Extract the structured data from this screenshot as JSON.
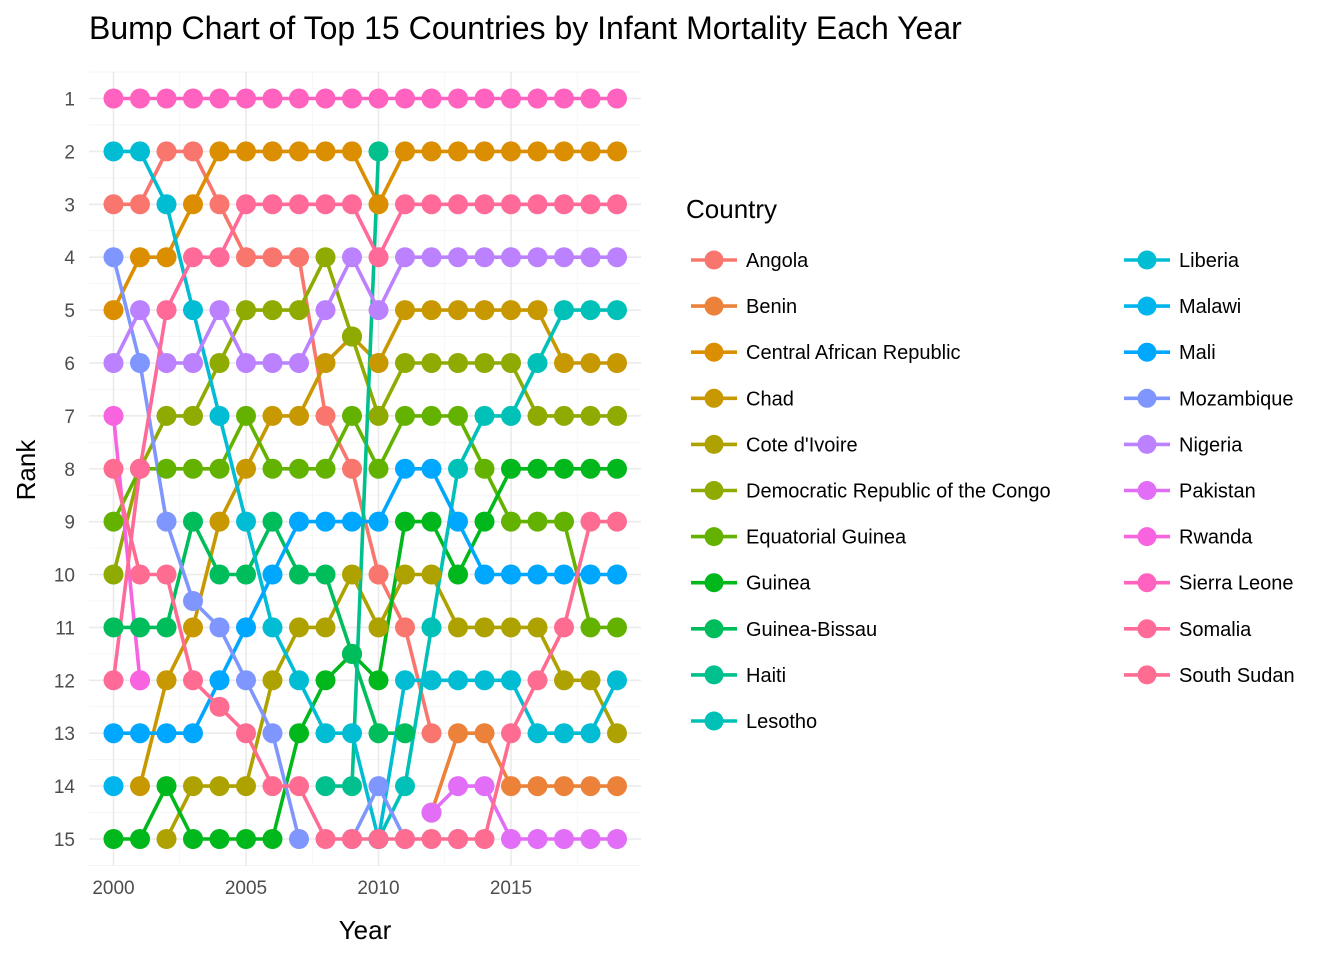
{
  "chart_data": {
    "type": "line",
    "title": "Bump Chart of Top 15 Countries by Infant Mortality Each Year",
    "xlabel": "Year",
    "ylabel": "Rank",
    "xlim": [
      1999.7,
      2019.3
    ],
    "ylim": [
      0.4,
      15.6
    ],
    "y_reversed": true,
    "x_ticks": [
      2000,
      2005,
      2010,
      2015
    ],
    "y_ticks": [
      1,
      2,
      3,
      4,
      5,
      6,
      7,
      8,
      9,
      10,
      11,
      12,
      13,
      14,
      15
    ],
    "grid": true,
    "legend_title": "Country",
    "legend_position": "right",
    "years": [
      2000,
      2001,
      2002,
      2003,
      2004,
      2005,
      2006,
      2007,
      2008,
      2009,
      2010,
      2011,
      2012,
      2013,
      2014,
      2015,
      2016,
      2017,
      2018,
      2019
    ],
    "series": [
      {
        "name": "Angola",
        "color": "#F8766D",
        "ranks": [
          3,
          3,
          2,
          2,
          3,
          4,
          4,
          4,
          7,
          8,
          10,
          11,
          13,
          null,
          null,
          null,
          null,
          null,
          null,
          null
        ]
      },
      {
        "name": "Benin",
        "color": "#EC8239",
        "ranks": [
          null,
          null,
          null,
          null,
          null,
          null,
          null,
          null,
          null,
          null,
          null,
          null,
          14.5,
          13,
          13,
          14,
          14,
          14,
          14,
          14
        ]
      },
      {
        "name": "Central African Republic",
        "color": "#DB8E00",
        "ranks": [
          5,
          4,
          4,
          3,
          2,
          2,
          2,
          2,
          2,
          2,
          3,
          2,
          2,
          2,
          2,
          2,
          2,
          2,
          2,
          2
        ]
      },
      {
        "name": "Chad",
        "color": "#C79800",
        "ranks": [
          null,
          14,
          12,
          11,
          9,
          8,
          7,
          7,
          6,
          5.5,
          6,
          5,
          5,
          5,
          5,
          5,
          5,
          6,
          6,
          6
        ]
      },
      {
        "name": "Cote d'Ivoire",
        "color": "#AEA200",
        "ranks": [
          null,
          null,
          15,
          14,
          14,
          14,
          12,
          11,
          11,
          10,
          11,
          10,
          10,
          11,
          11,
          11,
          11,
          12,
          12,
          13
        ]
      },
      {
        "name": "Democratic Republic of the Congo",
        "color": "#8FAA00",
        "ranks": [
          10,
          8,
          7,
          7,
          6,
          5,
          5,
          5,
          4,
          5.5,
          7,
          6,
          6,
          6,
          6,
          6,
          7,
          7,
          7,
          7
        ]
      },
      {
        "name": "Equatorial Guinea",
        "color": "#64B200",
        "ranks": [
          9,
          8,
          8,
          8,
          8,
          7,
          8,
          8,
          8,
          7,
          8,
          7,
          7,
          7,
          8,
          9,
          9,
          9,
          11,
          11
        ]
      },
      {
        "name": "Guinea",
        "color": "#00B81B",
        "ranks": [
          15,
          15,
          14,
          15,
          15,
          15,
          15,
          13,
          12,
          11.5,
          12,
          9,
          9,
          10,
          9,
          8,
          8,
          8,
          8,
          8
        ]
      },
      {
        "name": "Guinea-Bissau",
        "color": "#00BD5C",
        "ranks": [
          11,
          11,
          11,
          9,
          10,
          10,
          9,
          10,
          10,
          11.5,
          13,
          13,
          null,
          null,
          null,
          null,
          null,
          null,
          null,
          null
        ]
      },
      {
        "name": "Haiti",
        "color": "#00C08E",
        "ranks": [
          null,
          null,
          null,
          null,
          null,
          null,
          null,
          null,
          14,
          14,
          2,
          null,
          null,
          null,
          null,
          null,
          null,
          null,
          null,
          null
        ]
      },
      {
        "name": "Lesotho",
        "color": "#00C1B7",
        "ranks": [
          null,
          null,
          null,
          null,
          null,
          null,
          null,
          null,
          null,
          null,
          15,
          14,
          11,
          8,
          7,
          7,
          6,
          5,
          5,
          5
        ]
      },
      {
        "name": "Liberia",
        "color": "#00BDD4",
        "ranks": [
          2,
          2,
          3,
          5,
          7,
          9,
          11,
          12,
          13,
          13,
          15,
          12,
          12,
          12,
          12,
          12,
          13,
          13,
          13,
          12
        ]
      },
      {
        "name": "Malawi",
        "color": "#00B5EE",
        "ranks": [
          14,
          null,
          null,
          null,
          null,
          null,
          null,
          null,
          null,
          null,
          null,
          null,
          null,
          null,
          null,
          null,
          null,
          null,
          null,
          null
        ]
      },
      {
        "name": "Mali",
        "color": "#00A7FF",
        "ranks": [
          13,
          13,
          13,
          13,
          12,
          11,
          10,
          9,
          9,
          9,
          9,
          8,
          8,
          9,
          10,
          10,
          10,
          10,
          10,
          10
        ]
      },
      {
        "name": "Mozambique",
        "color": "#7F96FF",
        "ranks": [
          4,
          6,
          9,
          10.5,
          11,
          12,
          13,
          15,
          null,
          15,
          14,
          15,
          null,
          15,
          null,
          null,
          null,
          null,
          null,
          null
        ]
      },
      {
        "name": "Nigeria",
        "color": "#BC81FF",
        "ranks": [
          6,
          5,
          6,
          6,
          5,
          6,
          6,
          6,
          5,
          4,
          5,
          4,
          4,
          4,
          4,
          4,
          4,
          4,
          4,
          4
        ]
      },
      {
        "name": "Pakistan",
        "color": "#E26EF7",
        "ranks": [
          null,
          12,
          null,
          null,
          null,
          null,
          null,
          null,
          null,
          null,
          null,
          null,
          14.5,
          14,
          14,
          15,
          15,
          15,
          15,
          15
        ]
      },
      {
        "name": "Rwanda",
        "color": "#F863DF",
        "ranks": [
          7,
          12,
          null,
          null,
          null,
          null,
          null,
          null,
          null,
          null,
          null,
          null,
          null,
          null,
          null,
          null,
          null,
          null,
          null,
          null
        ]
      },
      {
        "name": "Sierra Leone",
        "color": "#FF62BF",
        "ranks": [
          1,
          1,
          1,
          1,
          1,
          1,
          1,
          1,
          1,
          1,
          1,
          1,
          1,
          1,
          1,
          1,
          1,
          1,
          1,
          1
        ]
      },
      {
        "name": "Somalia",
        "color": "#FF6A98",
        "ranks": [
          12,
          8,
          5,
          4,
          4,
          3,
          3,
          3,
          3,
          3,
          4,
          3,
          3,
          3,
          3,
          3,
          3,
          3,
          3,
          3
        ]
      },
      {
        "name": "South Sudan",
        "color": "#FF6C91",
        "ranks": [
          8,
          10,
          10,
          12,
          12.5,
          13,
          14,
          14,
          15,
          15,
          15,
          15,
          15,
          15,
          15,
          13,
          12,
          11,
          9,
          9
        ]
      }
    ]
  }
}
